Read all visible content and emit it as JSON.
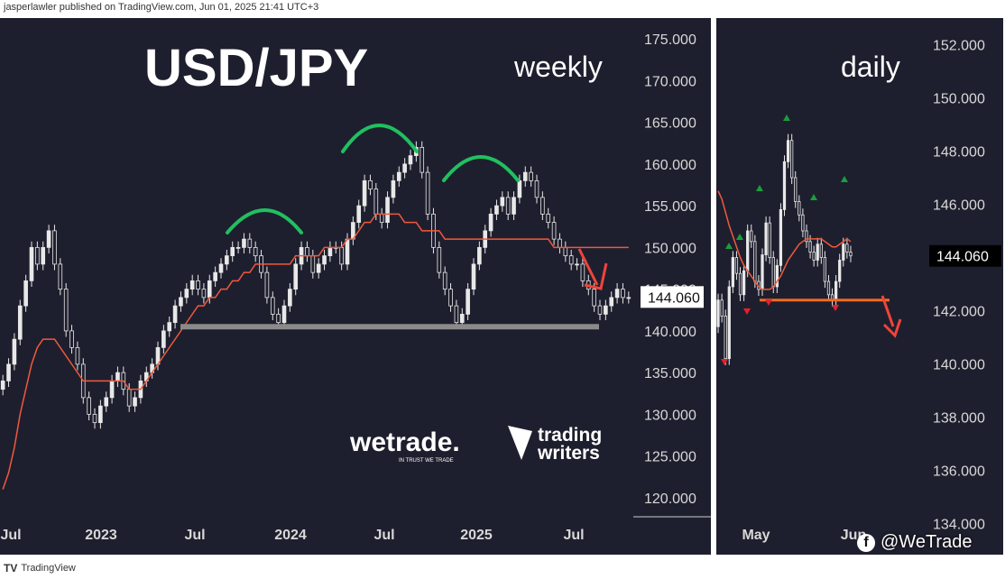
{
  "header": {
    "text": "jasperlawler published on TradingView.com, Jun 01, 2025 21:41 UTC+3"
  },
  "footer": {
    "logo": "TV",
    "text": "TradingView"
  },
  "watermark": {
    "icon": "facebook-icon",
    "text": "@WeTrade"
  },
  "colors": {
    "background": "#1e1f2e",
    "candle": "#e8e8e8",
    "ma": "#f05a3c",
    "arch": "#20c060",
    "support_weekly": "#8a8a8a",
    "support_daily": "#f06a24",
    "arrow": "#f0443a",
    "up_marker": "#1a9e3a",
    "down_marker": "#e8202a"
  },
  "chart_data": [
    {
      "type": "line",
      "title": "USD/JPY",
      "subtitle": "weekly",
      "ylim": [
        117.5,
        177.5
      ],
      "y_ticks": [
        "175.000",
        "170.000",
        "165.000",
        "160.000",
        "155.000",
        "150.000",
        "145.000",
        "140.000",
        "135.000",
        "130.000",
        "125.000",
        "120.000"
      ],
      "x_ticks": [
        "Jul",
        "2023",
        "Jul",
        "2024",
        "Jul",
        "2025",
        "Jul"
      ],
      "last_price_label": "144.060",
      "series": [
        {
          "name": "",
          "kind": "close",
          "values": [
            134,
            136,
            139,
            143,
            146,
            150,
            148,
            150,
            152,
            148,
            145,
            140,
            138,
            136,
            132,
            130,
            129,
            131,
            132,
            134,
            135,
            133,
            131,
            132,
            134,
            135,
            136,
            138,
            140,
            141,
            143,
            144,
            145,
            146,
            145,
            144,
            146,
            147,
            148,
            149,
            150,
            150,
            151,
            150,
            149,
            147,
            144,
            142,
            141,
            143,
            145,
            148,
            150,
            149,
            147,
            148,
            149,
            150,
            150,
            148,
            151,
            153,
            155,
            158,
            157,
            154,
            153,
            156,
            158,
            159,
            160,
            161,
            162,
            159,
            154,
            150,
            147,
            145,
            143,
            141,
            142,
            145,
            148,
            150,
            152,
            154,
            155,
            156,
            154,
            156,
            158,
            159,
            158,
            156,
            154,
            153,
            151,
            150,
            149,
            148,
            148,
            146,
            145,
            143,
            142,
            143,
            144,
            145,
            144,
            144
          ]
        },
        {
          "name": "",
          "kind": "moving average",
          "values": [
            121,
            123,
            126,
            130,
            133,
            136,
            138,
            139,
            139,
            139,
            138,
            137,
            136,
            135,
            134,
            134,
            134,
            134,
            134,
            134,
            134,
            134,
            133,
            133,
            133,
            134,
            135,
            136,
            137,
            138,
            139,
            140,
            141,
            142,
            143,
            143,
            144,
            144,
            145,
            145,
            146,
            146,
            147,
            147,
            148,
            148,
            148,
            148,
            148,
            148,
            148,
            149,
            149,
            149,
            149,
            149,
            150,
            150,
            150,
            150,
            151,
            151,
            152,
            153,
            153,
            154,
            154,
            154,
            154,
            154,
            153,
            153,
            153,
            152,
            152,
            152,
            152,
            151,
            151,
            151,
            151,
            151,
            151,
            151,
            151,
            151,
            151,
            151,
            151,
            151,
            151,
            151,
            151,
            151,
            151,
            151,
            150,
            150,
            150,
            150,
            150,
            150,
            150,
            150,
            150,
            150,
            150,
            150,
            150,
            150
          ]
        }
      ],
      "support_level": 140.5
    },
    {
      "type": "line",
      "subtitle": "daily",
      "ylim": [
        133,
        153
      ],
      "y_ticks": [
        "152.000",
        "150.000",
        "148.000",
        "146.000",
        "144.000",
        "142.000",
        "140.000",
        "138.000",
        "136.000",
        "134.000"
      ],
      "x_ticks": [
        "May",
        "Jun"
      ],
      "last_price_label": "144.060",
      "series": [
        {
          "name": "",
          "kind": "close",
          "values": [
            142.4,
            141.8,
            140.2,
            142.9,
            144.0,
            143.4,
            142.6,
            143.5,
            145.0,
            144.6,
            143.1,
            142.8,
            144.1,
            145.3,
            144.0,
            142.9,
            143.7,
            145.8,
            147.6,
            148.4,
            147.0,
            146.1,
            145.6,
            145.0,
            144.6,
            144.2,
            143.9,
            144.5,
            144.0,
            143.1,
            142.6,
            142.4,
            143.1,
            143.9,
            144.5,
            144.2,
            144.06
          ]
        },
        {
          "name": "",
          "kind": "moving average",
          "values": [
            146.5,
            146.2,
            145.7,
            145.2,
            144.8,
            144.4,
            144.0,
            143.7,
            143.5,
            143.3,
            143.1,
            142.9,
            142.8,
            142.8,
            142.8,
            142.9,
            143.1,
            143.3,
            143.6,
            143.9,
            144.1,
            144.3,
            144.5,
            144.6,
            144.7,
            144.7,
            144.7,
            144.7,
            144.7,
            144.6,
            144.5,
            144.4,
            144.4,
            144.5,
            144.6,
            144.7,
            144.6
          ]
        }
      ],
      "support_level": 142.4
    }
  ]
}
